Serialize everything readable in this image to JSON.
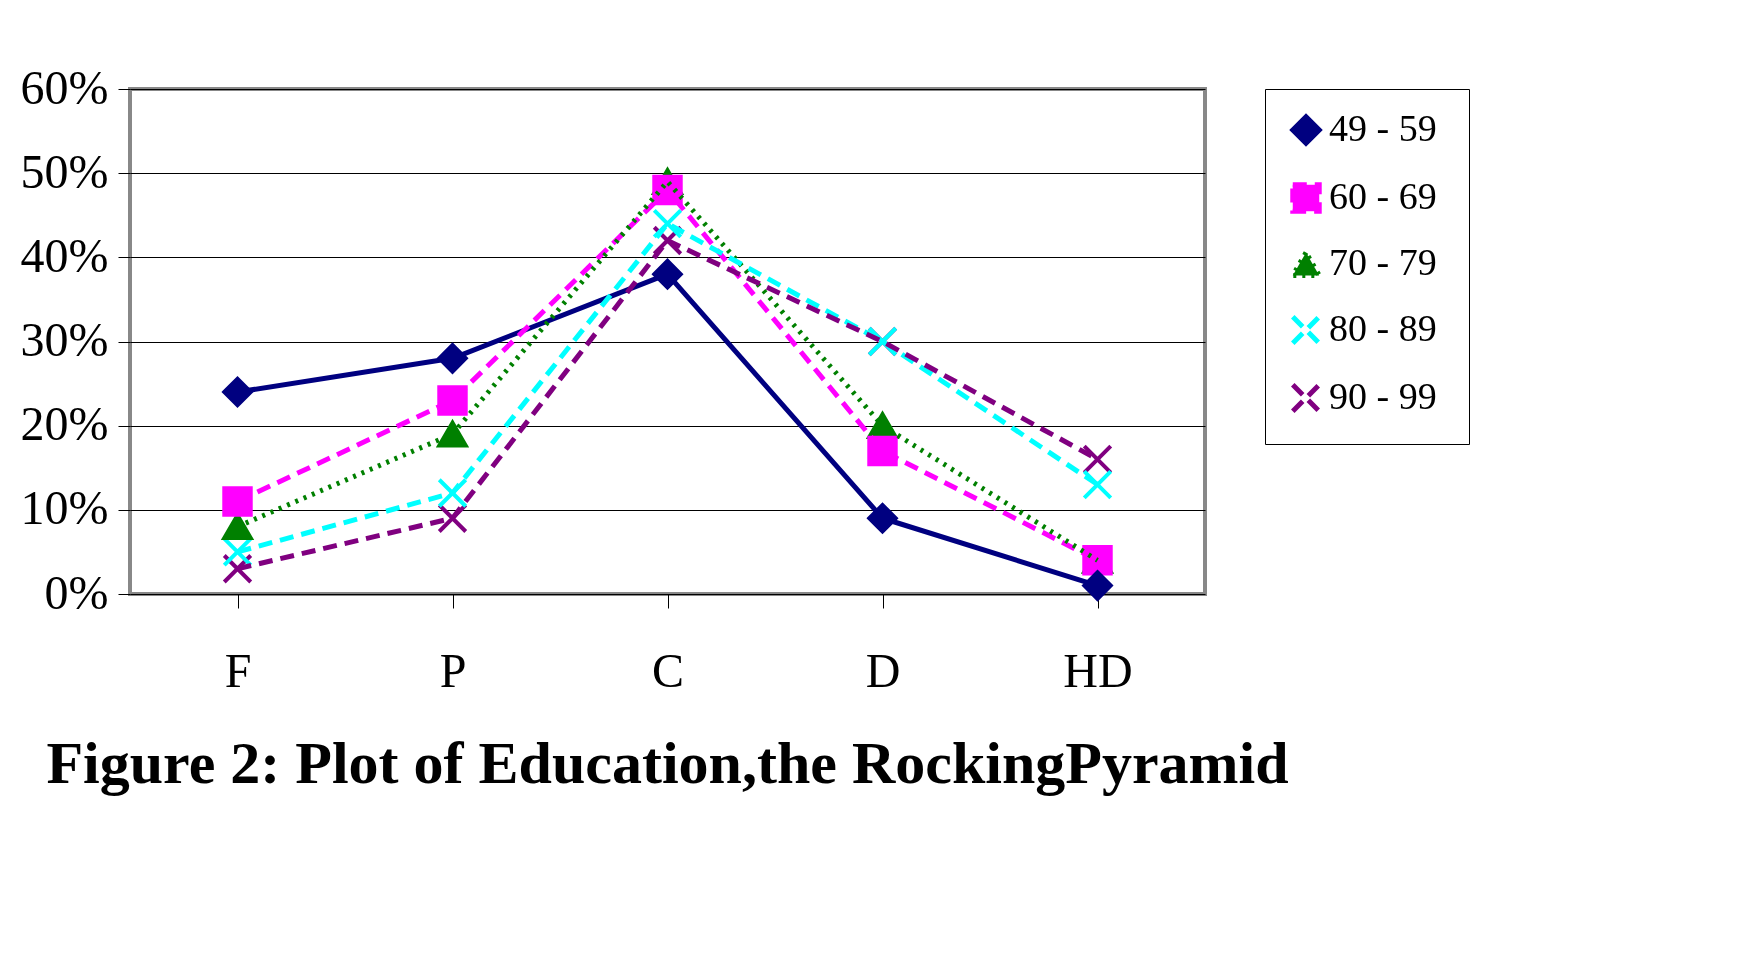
{
  "chart_data": {
    "type": "line",
    "title": "Figure 2: Plot of Education,the  RockingPyramid",
    "categories": [
      "F",
      "P",
      "C",
      "D",
      "HD"
    ],
    "ylim": [
      0,
      60
    ],
    "yticks": [
      {
        "value": 0,
        "label": "0%"
      },
      {
        "value": 10,
        "label": "10%"
      },
      {
        "value": 20,
        "label": "20%"
      },
      {
        "value": 30,
        "label": "30%"
      },
      {
        "value": 40,
        "label": "40%"
      },
      {
        "value": 50,
        "label": "50%"
      },
      {
        "value": 60,
        "label": "60%"
      }
    ],
    "grid": "y",
    "legend": "right",
    "series": [
      {
        "name": "49  - 59",
        "color": "#000080",
        "marker": "diamond",
        "line_style": "solid",
        "values": [
          24,
          28,
          38,
          9,
          1
        ]
      },
      {
        "name": "60  - 69",
        "color": "#ff00ff",
        "marker": "square",
        "line_style": "dashed",
        "values": [
          11,
          23,
          48,
          17,
          4
        ]
      },
      {
        "name": "70  - 79",
        "color": "#008000",
        "marker": "triangle",
        "line_style": "dotted",
        "values": [
          8,
          19,
          49,
          20,
          4
        ]
      },
      {
        "name": "80  - 89",
        "color": "#00ffff",
        "marker": "cross",
        "line_style": "dashed",
        "values": [
          5,
          12,
          44,
          30,
          13
        ]
      },
      {
        "name": "90  - 99",
        "color": "#800080",
        "marker": "cross",
        "line_style": "dashed",
        "values": [
          3,
          9,
          42,
          30,
          16
        ]
      }
    ]
  }
}
